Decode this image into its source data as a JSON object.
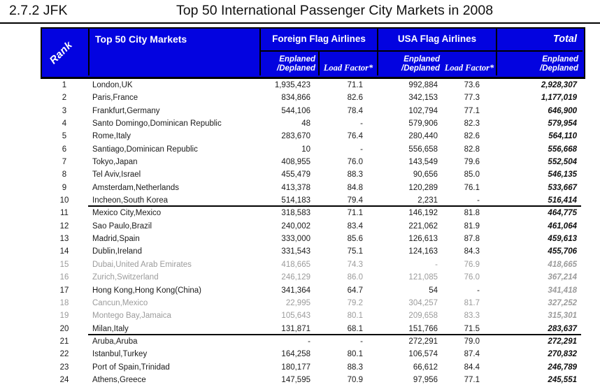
{
  "page": {
    "section_label": "2.7.2 JFK",
    "title": "Top 50 International Passenger City Markets in 2008"
  },
  "table": {
    "colors": {
      "header_bg": "#0303E0",
      "header_text": "#FFFFFF",
      "body_text": "#1A1A1A",
      "dim_text": "#9B9B9B"
    },
    "header": {
      "rank": "Rank",
      "city": "Top 50 City Markets",
      "foreign_group": "Foreign Flag Airlines",
      "usa_group": "USA Flag Airlines",
      "total_group": "Total",
      "enplaned_l1": "Enplaned",
      "enplaned_l2": "/Deplaned",
      "load_factor": "Load Factor*"
    },
    "rows": [
      {
        "rank": "1",
        "city": "London,UK",
        "f_enp": "1,935,423",
        "f_lf": "71.1",
        "u_enp": "992,884",
        "u_lf": "73.6",
        "total": "2,928,307",
        "dim": false,
        "dim_total": false,
        "divider_after": false
      },
      {
        "rank": "2",
        "city": "Paris,France",
        "f_enp": "834,866",
        "f_lf": "82.6",
        "u_enp": "342,153",
        "u_lf": "77.3",
        "total": "1,177,019",
        "dim": false,
        "dim_total": false,
        "divider_after": false
      },
      {
        "rank": "3",
        "city": "Frankfurt,Germany",
        "f_enp": "544,106",
        "f_lf": "78.4",
        "u_enp": "102,794",
        "u_lf": "77.1",
        "total": "646,900",
        "dim": false,
        "dim_total": false,
        "divider_after": false
      },
      {
        "rank": "4",
        "city": "Santo Domingo,Dominican Republic",
        "f_enp": "48",
        "f_lf": "-",
        "u_enp": "579,906",
        "u_lf": "82.3",
        "total": "579,954",
        "dim": false,
        "dim_total": false,
        "divider_after": false
      },
      {
        "rank": "5",
        "city": "Rome,Italy",
        "f_enp": "283,670",
        "f_lf": "76.4",
        "u_enp": "280,440",
        "u_lf": "82.6",
        "total": "564,110",
        "dim": false,
        "dim_total": false,
        "divider_after": false
      },
      {
        "rank": "6",
        "city": "Santiago,Dominican Republic",
        "f_enp": "10",
        "f_lf": "-",
        "u_enp": "556,658",
        "u_lf": "82.8",
        "total": "556,668",
        "dim": false,
        "dim_total": false,
        "divider_after": false
      },
      {
        "rank": "7",
        "city": "Tokyo,Japan",
        "f_enp": "408,955",
        "f_lf": "76.0",
        "u_enp": "143,549",
        "u_lf": "79.6",
        "total": "552,504",
        "dim": false,
        "dim_total": false,
        "divider_after": false
      },
      {
        "rank": "8",
        "city": "Tel Aviv,Israel",
        "f_enp": "455,479",
        "f_lf": "88.3",
        "u_enp": "90,656",
        "u_lf": "85.0",
        "total": "546,135",
        "dim": false,
        "dim_total": false,
        "divider_after": false
      },
      {
        "rank": "9",
        "city": "Amsterdam,Netherlands",
        "f_enp": "413,378",
        "f_lf": "84.8",
        "u_enp": "120,289",
        "u_lf": "76.1",
        "total": "533,667",
        "dim": false,
        "dim_total": false,
        "divider_after": false
      },
      {
        "rank": "10",
        "city": "Incheon,South Korea",
        "f_enp": "514,183",
        "f_lf": "79.4",
        "u_enp": "2,231",
        "u_lf": "-",
        "total": "516,414",
        "dim": false,
        "dim_total": false,
        "divider_after": true
      },
      {
        "rank": "11",
        "city": "Mexico City,Mexico",
        "f_enp": "318,583",
        "f_lf": "71.1",
        "u_enp": "146,192",
        "u_lf": "81.8",
        "total": "464,775",
        "dim": false,
        "dim_total": false,
        "divider_after": false
      },
      {
        "rank": "12",
        "city": "Sao Paulo,Brazil",
        "f_enp": "240,002",
        "f_lf": "83.4",
        "u_enp": "221,062",
        "u_lf": "81.9",
        "total": "461,064",
        "dim": false,
        "dim_total": false,
        "divider_after": false
      },
      {
        "rank": "13",
        "city": "Madrid,Spain",
        "f_enp": "333,000",
        "f_lf": "85.6",
        "u_enp": "126,613",
        "u_lf": "87.8",
        "total": "459,613",
        "dim": false,
        "dim_total": false,
        "divider_after": false
      },
      {
        "rank": "14",
        "city": "Dublin,Ireland",
        "f_enp": "331,543",
        "f_lf": "75.1",
        "u_enp": "124,163",
        "u_lf": "84.3",
        "total": "455,706",
        "dim": false,
        "dim_total": false,
        "divider_after": false
      },
      {
        "rank": "15",
        "city": "Dubai,United Arab Emirates",
        "f_enp": "418,665",
        "f_lf": "74.3",
        "u_enp": "-",
        "u_lf": "76.9",
        "total": "418,665",
        "dim": true,
        "dim_total": false,
        "divider_after": false
      },
      {
        "rank": "16",
        "city": "Zurich,Switzerland",
        "f_enp": "246,129",
        "f_lf": "86.0",
        "u_enp": "121,085",
        "u_lf": "76.0",
        "total": "367,214",
        "dim": true,
        "dim_total": false,
        "divider_after": false
      },
      {
        "rank": "17",
        "city": "Hong Kong,Hong Kong(China)",
        "f_enp": "341,364",
        "f_lf": "64.7",
        "u_enp": "54",
        "u_lf": "-",
        "total": "341,418",
        "dim": false,
        "dim_total": true,
        "divider_after": false
      },
      {
        "rank": "18",
        "city": "Cancun,Mexico",
        "f_enp": "22,995",
        "f_lf": "79.2",
        "u_enp": "304,257",
        "u_lf": "81.7",
        "total": "327,252",
        "dim": true,
        "dim_total": false,
        "divider_after": false
      },
      {
        "rank": "19",
        "city": "Montego Bay,Jamaica",
        "f_enp": "105,643",
        "f_lf": "80.1",
        "u_enp": "209,658",
        "u_lf": "83.3",
        "total": "315,301",
        "dim": true,
        "dim_total": false,
        "divider_after": false
      },
      {
        "rank": "20",
        "city": "Milan,Italy",
        "f_enp": "131,871",
        "f_lf": "68.1",
        "u_enp": "151,766",
        "u_lf": "71.5",
        "total": "283,637",
        "dim": false,
        "dim_total": false,
        "divider_after": true
      },
      {
        "rank": "21",
        "city": "Aruba,Aruba",
        "f_enp": "-",
        "f_lf": "-",
        "u_enp": "272,291",
        "u_lf": "79.0",
        "total": "272,291",
        "dim": false,
        "dim_total": false,
        "divider_after": false
      },
      {
        "rank": "22",
        "city": "Istanbul,Turkey",
        "f_enp": "164,258",
        "f_lf": "80.1",
        "u_enp": "106,574",
        "u_lf": "87.4",
        "total": "270,832",
        "dim": false,
        "dim_total": false,
        "divider_after": false
      },
      {
        "rank": "23",
        "city": "Port of Spain,Trinidad",
        "f_enp": "180,177",
        "f_lf": "88.3",
        "u_enp": "66,612",
        "u_lf": "84.4",
        "total": "246,789",
        "dim": false,
        "dim_total": false,
        "divider_after": false
      },
      {
        "rank": "24",
        "city": "Athens,Greece",
        "f_enp": "147,595",
        "f_lf": "70.9",
        "u_enp": "97,956",
        "u_lf": "77.1",
        "total": "245,551",
        "dim": false,
        "dim_total": false,
        "divider_after": false
      }
    ]
  }
}
